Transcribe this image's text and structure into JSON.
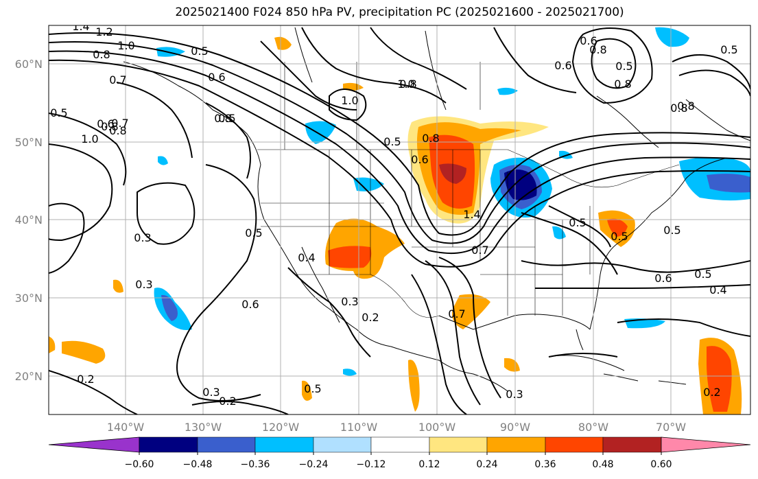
{
  "title": "2025021400 F024 850 hPa PV, precipitation PC (2025021600 - 2025021700)",
  "lat_labels": [
    "60°N",
    "50°N",
    "40°N",
    "30°N",
    "20°N"
  ],
  "lon_labels": [
    "140°W",
    "130°W",
    "120°W",
    "110°W",
    "100°W",
    "90°W",
    "80°W",
    "70°W"
  ],
  "colorbar": {
    "tick_labels": [
      "−0.60",
      "−0.48",
      "−0.36",
      "−0.24",
      "−0.12",
      "0.12",
      "0.24",
      "0.36",
      "0.48",
      "0.60"
    ],
    "colors": [
      "#9933cc",
      "#000080",
      "#3a5fcd",
      "#00bfff",
      "#b0e0ff",
      "#ffffff",
      "#ffe680",
      "#ffa500",
      "#ff4500",
      "#b22222",
      "#ff88aa"
    ]
  },
  "contour_labels": [
    "1.4",
    "1.2",
    "1.0",
    "0.8",
    "0.7",
    "0.5",
    "0.8",
    "0.6",
    "0.8",
    "1.0",
    "0.5",
    "0.7",
    "0.6",
    "0.8",
    "1.0",
    "0.5",
    "0.8",
    "0.8",
    "0.5",
    "0.6",
    "0.8",
    "0.3",
    "0.5",
    "0.4",
    "0.6",
    "0.3",
    "0.2",
    "0.3",
    "0.5",
    "0.2",
    "0.3",
    "0.2",
    "0.5",
    "0.5",
    "0.5",
    "0.4",
    "0.6",
    "0.7",
    "0.3",
    "0.2",
    "1.0",
    "1.4",
    "0.6",
    "0.8",
    "0.5",
    "0.5",
    "0.7",
    "0.8",
    "0.6",
    "0.8",
    "0.5"
  ],
  "colors": {
    "grid": "#b0b0b0",
    "contour": "#000000",
    "coast": "#000000"
  }
}
